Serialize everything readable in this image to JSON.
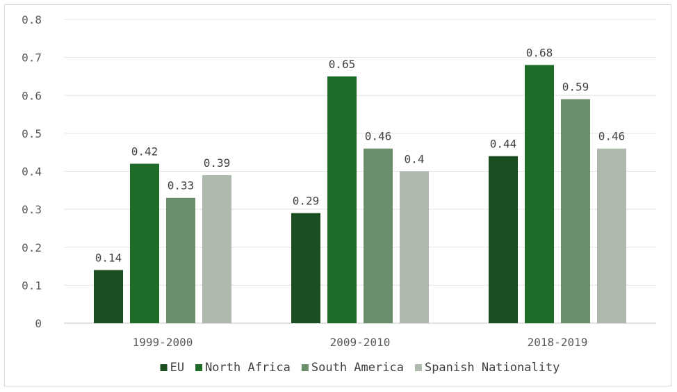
{
  "chart_data": {
    "type": "bar",
    "title": "",
    "xlabel": "",
    "ylabel": "",
    "categories": [
      "1999-2000",
      "2009-2010",
      "2018-2019"
    ],
    "series": [
      {
        "name": "EU",
        "color": "#1a4d1f",
        "values": [
          0.14,
          0.29,
          0.44
        ]
      },
      {
        "name": "North Africa",
        "color": "#1d6b26",
        "values": [
          0.42,
          0.65,
          0.68
        ]
      },
      {
        "name": "South America",
        "color": "#6b8f6d",
        "values": [
          0.33,
          0.46,
          0.59
        ]
      },
      {
        "name": "Spanish Nationality",
        "color": "#aebaad",
        "values": [
          0.39,
          0.4,
          0.46
        ]
      }
    ],
    "ylim": [
      0,
      0.8
    ],
    "yticks": [
      "0",
      "0.1",
      "0.2",
      "0.3",
      "0.4",
      "0.5",
      "0.6",
      "0.7",
      "0.8"
    ],
    "grid": true,
    "legend_position": "bottom"
  }
}
